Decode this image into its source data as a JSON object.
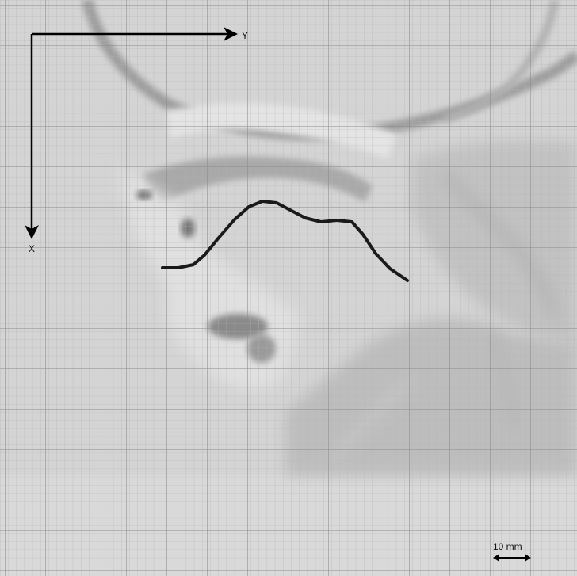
{
  "axes": {
    "x_label": "X",
    "y_label": "Y"
  },
  "scale_bar": {
    "label": "10 mm"
  },
  "colors": {
    "background_gray": "#cfcfcf",
    "grid_major": "#8e8e8e",
    "grid_minor": "#b3b3b3",
    "contour": "#1a1a1a",
    "axis": "#000000"
  }
}
